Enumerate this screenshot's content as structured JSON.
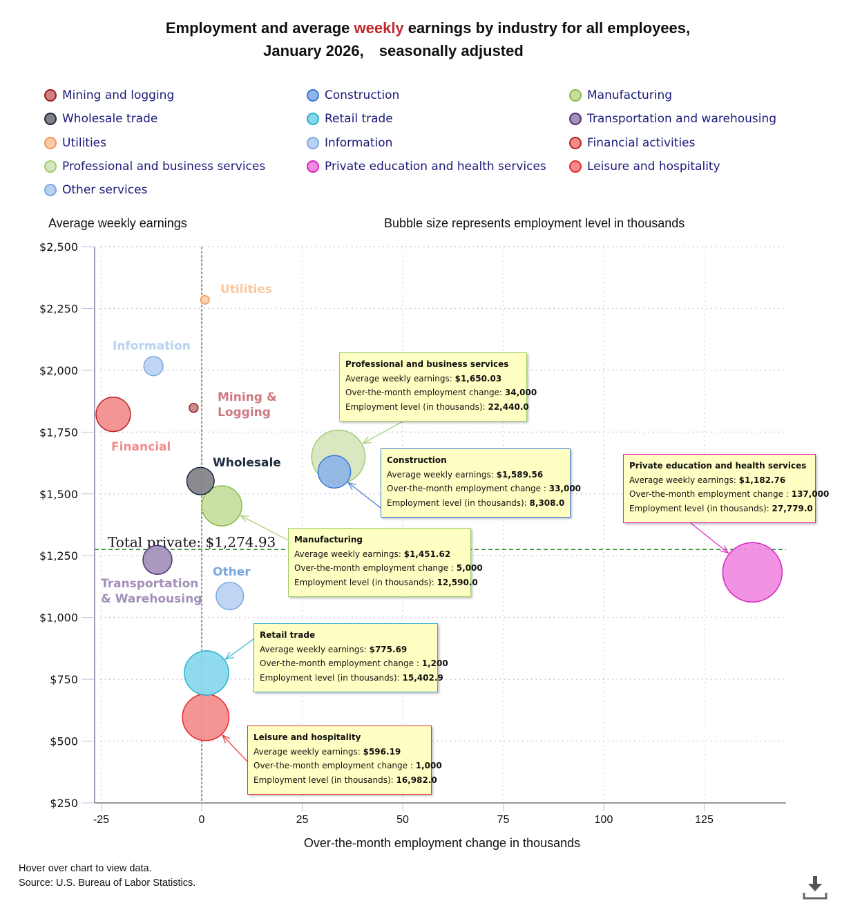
{
  "title": {
    "line1_before": "Employment and average ",
    "line1_highlight": "weekly",
    "line1_after": " earnings by industry for all employees,",
    "line2_period": "January 2026,",
    "line2_adjustment": "seasonally adjusted",
    "highlight_color": "#c0282d"
  },
  "legend": [
    {
      "label": "Mining and logging",
      "fill": "#cc8080",
      "stroke": "#9b1c1c"
    },
    {
      "label": "Construction",
      "fill": "#8fb4e8",
      "stroke": "#3b78d0"
    },
    {
      "label": "Manufacturing",
      "fill": "#c6dd9c",
      "stroke": "#8bbb4a"
    },
    {
      "label": "Wholesale trade",
      "fill": "#7f8186",
      "stroke": "#1e2b3e"
    },
    {
      "label": "Retail trade",
      "fill": "#86d7ea",
      "stroke": "#2bb2cc"
    },
    {
      "label": "Transportation and warehousing",
      "fill": "#a290b8",
      "stroke": "#4e2f78"
    },
    {
      "label": "Utilities",
      "fill": "#fbcba8",
      "stroke": "#f0955a"
    },
    {
      "label": "Information",
      "fill": "#b8d2f2",
      "stroke": "#7ca8e0"
    },
    {
      "label": "Financial activities",
      "fill": "#f28c8c",
      "stroke": "#b82323"
    },
    {
      "label": "Professional and business services",
      "fill": "#d6e6bb",
      "stroke": "#9ccd6a"
    },
    {
      "label": "Private education and health services",
      "fill": "#f08ae0",
      "stroke": "#d824c0"
    },
    {
      "label": "Leisure and hospitality",
      "fill": "#f28c8c",
      "stroke": "#e82828"
    },
    {
      "label": "Other services",
      "fill": "#b8d2f2",
      "stroke": "#7ca8e0"
    }
  ],
  "axis": {
    "y_title": "Average weekly earnings",
    "bubble_note": "Bubble size represents employment level in thousands",
    "x_title": "Over-the-month employment change in thousands"
  },
  "chart_data": {
    "type": "scatter",
    "subtype": "bubble",
    "title": "Employment and average weekly earnings by industry for all employees, January 2026, seasonally adjusted",
    "xlabel": "Over-the-month employment change in thousands",
    "ylabel": "Average weekly earnings",
    "size_label": "Employment level in thousands",
    "xlim": [
      -27,
      145
    ],
    "ylim": [
      250,
      2500
    ],
    "x_ticks": [
      -25,
      0,
      25,
      50,
      75,
      100,
      125
    ],
    "x_tick_labels": [
      "-25",
      "0",
      "25",
      "50",
      "75",
      "100",
      "125"
    ],
    "y_ticks": [
      250,
      500,
      750,
      1000,
      1250,
      1500,
      1750,
      2000,
      2250,
      2500
    ],
    "y_tick_labels": [
      "$250",
      "$500",
      "$750",
      "$1,000",
      "$1,250",
      "$1,500",
      "$1,750",
      "$2,000",
      "$2,250",
      "$2,500"
    ],
    "grid": true,
    "legend_position": "top",
    "reference_line": {
      "label": "Total private:",
      "value": 1274.93,
      "value_label": "$1,274.93"
    },
    "series": [
      {
        "name": "Mining and logging",
        "x": -2,
        "y": 1848,
        "size": 620,
        "label": "Mining & Logging",
        "label_lines": [
          "Mining &",
          "Logging"
        ],
        "label_color": "#cc7a80"
      },
      {
        "name": "Construction",
        "x": 33,
        "y": 1589.56,
        "size": 8308.0,
        "label": "",
        "label_lines": [],
        "label_color": ""
      },
      {
        "name": "Manufacturing",
        "x": 5,
        "y": 1451.62,
        "size": 12590.0,
        "label": "",
        "label_lines": [],
        "label_color": ""
      },
      {
        "name": "Wholesale trade",
        "x": -0.3,
        "y": 1552,
        "size": 5900,
        "label": "Wholesale",
        "label_lines": [
          "Wholesale"
        ],
        "label_color": "#1e2b3e"
      },
      {
        "name": "Retail trade",
        "x": 1.2,
        "y": 775.69,
        "size": 15402.9,
        "label": "",
        "label_lines": [],
        "label_color": ""
      },
      {
        "name": "Transportation and warehousing",
        "x": -11,
        "y": 1233,
        "size": 6600,
        "label": "Transportation & Warehousing",
        "label_lines": [
          "Transportation",
          "& Warehousing"
        ],
        "label_color": "#a290b8"
      },
      {
        "name": "Utilities",
        "x": 0.8,
        "y": 2285,
        "size": 580,
        "label": "Utilities",
        "label_lines": [
          "Utilities"
        ],
        "label_color": "#f8c8a0"
      },
      {
        "name": "Information",
        "x": -12,
        "y": 2017,
        "size": 2900,
        "label": "Information",
        "label_lines": [
          "Information"
        ],
        "label_color": "#b8d2f2"
      },
      {
        "name": "Financial activities",
        "x": -22,
        "y": 1822,
        "size": 9300,
        "label": "Financial",
        "label_lines": [
          "Financial"
        ],
        "label_color": "#f08c8c"
      },
      {
        "name": "Professional and business services",
        "x": 34,
        "y": 1650.03,
        "size": 22440.0,
        "label": "",
        "label_lines": [],
        "label_color": ""
      },
      {
        "name": "Private education and health services",
        "x": 137,
        "y": 1182.76,
        "size": 27779.0,
        "label": "",
        "label_lines": [],
        "label_color": ""
      },
      {
        "name": "Leisure and hospitality",
        "x": 1.0,
        "y": 596.19,
        "size": 16982.0,
        "label": "",
        "label_lines": [],
        "label_color": ""
      },
      {
        "name": "Other services",
        "x": 7,
        "y": 1087,
        "size": 5900,
        "label": "Other",
        "label_lines": [
          "Other"
        ],
        "label_color": "#7ca8e0"
      }
    ]
  },
  "tooltips": [
    {
      "title": "Professional and business services",
      "earnings_label": "Average weekly earnings: ",
      "earnings": "$1,650.03",
      "change_label": "Over-the-month employment change: ",
      "change": "34,000",
      "level_label": "Employment level (in thousands): ",
      "level": "22,440.0",
      "border": "#9ccd6a"
    },
    {
      "title": "Construction",
      "earnings_label": "Average weekly earnings: ",
      "earnings": "$1,589.56",
      "change_label": "Over-the-month employment change : ",
      "change": "33,000",
      "level_label": "Employment level (in thousands): ",
      "level": "8,308.0",
      "border": "#3b78d0"
    },
    {
      "title": "Private education and health services",
      "earnings_label": "Average weekly earnings: ",
      "earnings": "$1,182.76",
      "change_label": "Over-the-month employment change : ",
      "change": "137,000",
      "level_label": "Employment level (in thousands): ",
      "level": "27,779.0",
      "border": "#d824c0"
    },
    {
      "title": "Manufacturing",
      "earnings_label": "Average weekly earnings: ",
      "earnings": "$1,451.62",
      "change_label": "Over-the-month employment change : ",
      "change": "5,000",
      "level_label": "Employment level (in thousands): ",
      "level": "12,590.0",
      "border": "#9ccd6a"
    },
    {
      "title": "Retail trade",
      "earnings_label": "Average weekly earnings: ",
      "earnings": "$775.69",
      "change_label": "Over-the-month employment change : ",
      "change": "1,200",
      "level_label": "Employment level (in thousands): ",
      "level": "15,402.9",
      "border": "#2bb2cc"
    },
    {
      "title": "Leisure and hospitality",
      "earnings_label": "Average weekly earnings: ",
      "earnings": "$596.19",
      "change_label": "Over-the-month employment change : ",
      "change": "1,000",
      "level_label": "Employment level (in thousands): ",
      "level": "16,982.0",
      "border": "#e82828"
    }
  ],
  "footer": {
    "hint": "Hover over chart to view data.",
    "source": "Source: U.S. Bureau of Labor Statistics."
  },
  "icons": {
    "download": "download-icon"
  }
}
